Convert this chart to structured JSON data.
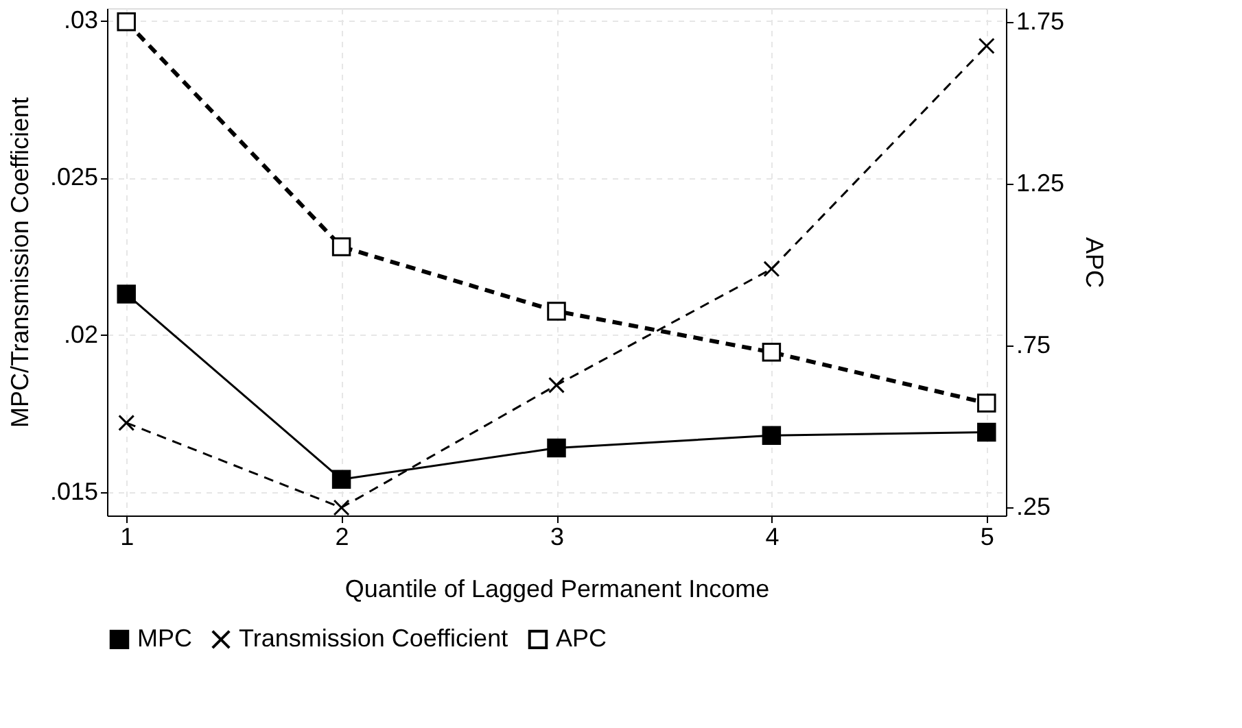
{
  "chart_data": {
    "type": "line",
    "xlabel": "Quantile of Lagged Permanent Income",
    "ylabel": "MPC/Transmission Coefficient",
    "y2label": "APC",
    "x": [
      1,
      2,
      3,
      4,
      5
    ],
    "series": [
      {
        "name": "MPC",
        "color": "#000000",
        "values": [
          0.0213,
          0.0154,
          0.0164,
          0.0168,
          0.0169
        ],
        "marker": "square",
        "line_style": "solid"
      },
      {
        "name": "Transmission Coefficient",
        "color": "#000000",
        "values": [
          0.0172,
          0.0145,
          0.0184,
          0.0221,
          0.0292
        ],
        "marker": "cross",
        "line_style": "dashed"
      },
      {
        "name": "APC",
        "color": "#000000",
        "values": [
          1.75,
          1.055,
          0.856,
          0.729,
          0.572
        ],
        "marker": "square",
        "line_style": "dashed",
        "axis": "y2"
      }
    ],
    "xlim": [
      0.91,
      5.09
    ],
    "xticks": [
      1,
      2,
      3,
      4,
      5
    ],
    "ylim": [
      0.01425,
      0.0304
    ],
    "yticks": [
      {
        "value": 0.015,
        "label": ".015"
      },
      {
        "value": 0.02,
        "label": ".02"
      },
      {
        "value": 0.025,
        "label": ".025"
      },
      {
        "value": 0.03,
        "label": ".03"
      }
    ],
    "y2lim": [
      0.2246,
      1.792
    ],
    "y2ticks": [
      {
        "value": 0.25,
        "label": ".25"
      },
      {
        "value": 0.75,
        "label": ".75"
      },
      {
        "value": 1.25,
        "label": "1.25"
      },
      {
        "value": 1.75,
        "label": "1.75"
      }
    ],
    "grid": true,
    "legend": "bottom"
  }
}
